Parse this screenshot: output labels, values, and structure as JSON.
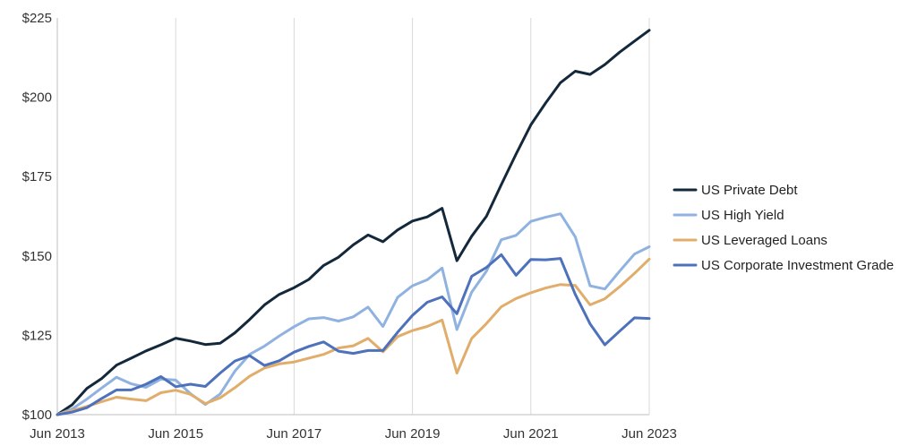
{
  "chart_data": {
    "type": "line",
    "title": "",
    "xlabel": "",
    "ylabel": "",
    "x_tick_labels": [
      "Jun 2013",
      "Jun 2015",
      "Jun 2017",
      "Jun 2019",
      "Jun 2021",
      "Jun 2023"
    ],
    "y_tick_labels": [
      "$100",
      "$125",
      "$150",
      "$175",
      "$200",
      "$225"
    ],
    "y_ticks": [
      100,
      125,
      150,
      175,
      200,
      225
    ],
    "ylim": [
      100,
      225
    ],
    "x_unit": "quarter",
    "xlim": [
      "2013-06",
      "2023-06"
    ],
    "grid": "vertical gridlines at labeled dates",
    "legend_position": "right",
    "x": [
      "2013-06",
      "2013-09",
      "2013-12",
      "2014-03",
      "2014-06",
      "2014-09",
      "2014-12",
      "2015-03",
      "2015-06",
      "2015-09",
      "2015-12",
      "2016-03",
      "2016-06",
      "2016-09",
      "2016-12",
      "2017-03",
      "2017-06",
      "2017-09",
      "2017-12",
      "2018-03",
      "2018-06",
      "2018-09",
      "2018-12",
      "2019-03",
      "2019-06",
      "2019-09",
      "2019-12",
      "2020-03",
      "2020-06",
      "2020-09",
      "2020-12",
      "2021-03",
      "2021-06",
      "2021-09",
      "2021-12",
      "2022-03",
      "2022-06",
      "2022-09",
      "2022-12",
      "2023-03",
      "2023-06"
    ],
    "series": [
      {
        "name": "US Private Debt",
        "color": "#14283b",
        "values": [
          100,
          103.1,
          108.3,
          111.4,
          115.6,
          117.8,
          120.1,
          122.0,
          124.1,
          123.2,
          122.1,
          122.5,
          125.8,
          130.0,
          134.6,
          137.9,
          140.0,
          142.6,
          147.0,
          149.6,
          153.5,
          156.6,
          154.5,
          158.2,
          161.0,
          162.3,
          165.0,
          148.5,
          156.2,
          162.5,
          172.5,
          182.1,
          191.3,
          198.2,
          204.6,
          208.2,
          207.2,
          210.3,
          214.2,
          217.7,
          221.1
        ]
      },
      {
        "name": "US High Yield",
        "color": "#8fb2e0",
        "values": [
          100,
          101.8,
          104.9,
          108.4,
          111.8,
          109.7,
          108.6,
          111.2,
          110.9,
          106.6,
          103.2,
          106.5,
          113.7,
          119.0,
          121.6,
          124.8,
          127.7,
          130.2,
          130.6,
          129.5,
          130.8,
          133.9,
          127.8,
          137.0,
          140.6,
          142.5,
          146.2,
          126.8,
          138.6,
          145.2,
          155.1,
          156.5,
          160.9,
          162.2,
          163.3,
          156.0,
          140.6,
          139.6,
          145.2,
          150.6,
          152.9
        ]
      },
      {
        "name": "US Leveraged Loans",
        "color": "#e0ad6b",
        "values": [
          100,
          101.3,
          102.6,
          104.1,
          105.5,
          104.9,
          104.4,
          106.9,
          107.7,
          106.4,
          103.5,
          105.3,
          108.5,
          112.1,
          114.7,
          116.0,
          116.6,
          117.8,
          119.0,
          121.0,
          121.7,
          124.0,
          119.8,
          124.6,
          126.5,
          127.8,
          129.8,
          113.1,
          124.0,
          128.7,
          134.0,
          136.6,
          138.4,
          139.9,
          141.0,
          140.7,
          134.6,
          136.5,
          140.3,
          144.5,
          149.0
        ]
      },
      {
        "name": "US Corporate Investment Grade",
        "color": "#4d71bb",
        "values": [
          100,
          100.8,
          102.2,
          105.1,
          107.8,
          107.8,
          109.6,
          112.0,
          108.8,
          109.6,
          108.9,
          113.1,
          116.9,
          118.6,
          115.5,
          117.0,
          119.7,
          121.5,
          122.9,
          120.0,
          119.3,
          120.2,
          120.2,
          126.0,
          131.3,
          135.4,
          137.1,
          131.8,
          143.6,
          146.4,
          150.4,
          143.9,
          148.9,
          148.8,
          149.2,
          137.9,
          128.6,
          122.0,
          126.3,
          130.5,
          130.3
        ]
      }
    ]
  }
}
